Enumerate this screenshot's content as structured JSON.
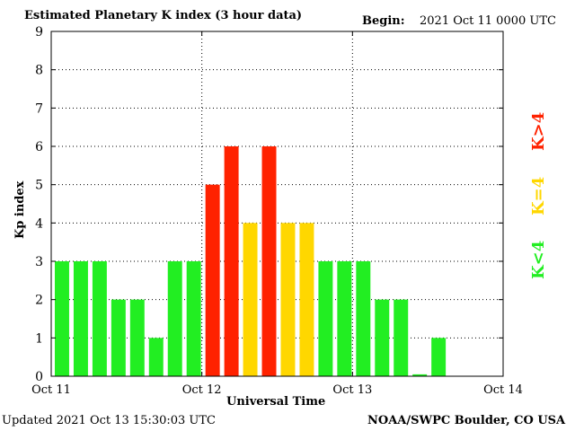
{
  "header": {
    "title": "Estimated Planetary K index (3 hour data)",
    "begin_label": "Begin:",
    "begin_value": "2021 Oct 11 0000 UTC"
  },
  "footer": {
    "updated": "Updated 2021 Oct 13 15:30:03 UTC",
    "source": "NOAA/SWPC Boulder, CO USA"
  },
  "legend": {
    "low": "K<4",
    "mid": "K=4",
    "high": "K>4"
  },
  "colors": {
    "low": "#22ee22",
    "mid": "#ffd700",
    "high": "#ff2200",
    "grid": "#000000",
    "axis": "#000000"
  },
  "chart_data": {
    "type": "bar",
    "title": "Estimated Planetary K index (3 hour data)",
    "xlabel": "Universal Time",
    "ylabel": "Kp index",
    "ylim": [
      0,
      9
    ],
    "y_ticks": [
      0,
      1,
      2,
      3,
      4,
      5,
      6,
      7,
      8,
      9
    ],
    "x_ticks": [
      "Oct 11",
      "Oct 12",
      "Oct 13",
      "Oct 14"
    ],
    "slots_total": 24,
    "grid": true,
    "values": [
      3,
      3,
      3,
      2,
      2,
      1,
      3,
      3,
      5,
      6,
      4,
      6,
      4,
      4,
      3,
      3,
      3,
      2,
      2,
      0.05,
      1
    ],
    "color_rule": "green K<4, yellow K=4, red K>4"
  }
}
